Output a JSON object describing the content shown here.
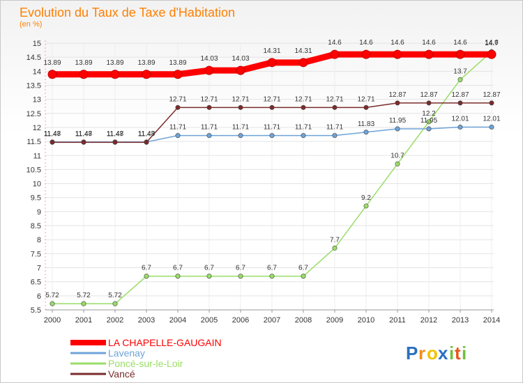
{
  "chart_data": {
    "type": "line",
    "title": "Evolution du Taux de Taxe d'Habitation",
    "subtitle": "(en %)",
    "x": [
      "2000",
      "2001",
      "2002",
      "2003",
      "2004",
      "2005",
      "2006",
      "2007",
      "2008",
      "2009",
      "2010",
      "2011",
      "2012",
      "2013",
      "2014"
    ],
    "ylim": [
      5.5,
      15
    ],
    "yticks": [
      "5.5",
      "6",
      "6.5",
      "7",
      "7.5",
      "8",
      "8.5",
      "9",
      "9.5",
      "10",
      "10.5",
      "11",
      "11.5",
      "12",
      "12.5",
      "13",
      "13.5",
      "14",
      "14.5",
      "15"
    ],
    "series": [
      {
        "name": "LA CHAPELLE-GAUGAIN",
        "color": "#ff0000",
        "values": [
          13.89,
          13.89,
          13.89,
          13.89,
          13.89,
          14.03,
          14.03,
          14.31,
          14.31,
          14.6,
          14.6,
          14.6,
          14.6,
          14.6,
          14.6
        ],
        "labels": [
          "13.89",
          "13.89",
          "13.89",
          "13.89",
          "13.89",
          "14.03",
          "14.03",
          "14.31",
          "14.31",
          "14.6",
          "14.6",
          "14.6",
          "14.6",
          "14.6",
          "14.6"
        ]
      },
      {
        "name": "Lavenay",
        "color": "#6ea3d8",
        "values": [
          11.48,
          11.48,
          11.48,
          11.48,
          11.71,
          11.71,
          11.71,
          11.71,
          11.71,
          11.71,
          11.83,
          11.95,
          11.95,
          12.01,
          12.01
        ],
        "labels": [
          "11.48",
          "11.48",
          "11.48",
          "11.48",
          "11.71",
          "11.71",
          "11.71",
          "11.71",
          "11.71",
          "11.71",
          "11.83",
          "11.95",
          "11.95",
          "12.01",
          "12.01"
        ]
      },
      {
        "name": "Poncé-sur-le-Loir",
        "color": "#99dd66",
        "values": [
          5.72,
          5.72,
          5.72,
          6.7,
          6.7,
          6.7,
          6.7,
          6.7,
          6.7,
          7.7,
          9.2,
          10.7,
          12.2,
          13.7,
          14.7
        ],
        "labels": [
          "5.72",
          "5.72",
          "5.72",
          "6.7",
          "6.7",
          "6.7",
          "6.7",
          "6.7",
          "6.7",
          "7.7",
          "9.2",
          "10.7",
          "12.2",
          "13.7",
          "14.7"
        ]
      },
      {
        "name": "Vancé",
        "color": "#7a2b2b",
        "values": [
          11.47,
          11.47,
          11.47,
          11.47,
          12.71,
          12.71,
          12.71,
          12.71,
          12.71,
          12.71,
          12.71,
          12.87,
          12.87,
          12.87,
          12.87
        ],
        "labels": [
          "11.47",
          "11.47",
          "11.47",
          "11.47",
          "12.71",
          "12.71",
          "12.71",
          "12.71",
          "12.71",
          "12.71",
          "12.71",
          "12.87",
          "12.87",
          "12.87",
          "12.87"
        ]
      }
    ]
  },
  "logo": {
    "letters": [
      "P",
      "r",
      "o",
      "x",
      "i",
      "t",
      "i"
    ],
    "colors": [
      "#2b6fc0",
      "#f28c1a",
      "#f2c200",
      "#2b6fc0",
      "#6fbf3c",
      "#e8541c",
      "#6fbf3c"
    ]
  }
}
